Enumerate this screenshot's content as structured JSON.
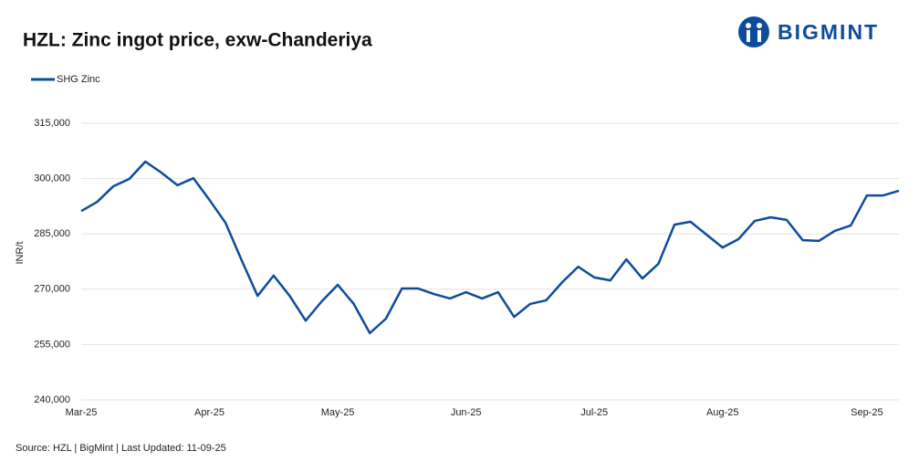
{
  "chart_data": {
    "type": "line",
    "title": "HZL: Zinc ingot price, exw-Chanderiya",
    "brand": "BIGMINT",
    "source": "Source: HZL | BigMint | Last Updated: 11-09-25",
    "y_label": "INR/t",
    "categories": [
      "Mar-25",
      null,
      null,
      null,
      null,
      null,
      null,
      null,
      "Apr-25",
      null,
      null,
      null,
      null,
      null,
      null,
      null,
      "May-25",
      null,
      null,
      null,
      null,
      null,
      null,
      null,
      "Jun-25",
      null,
      null,
      null,
      null,
      null,
      null,
      null,
      "Jul-25",
      null,
      null,
      null,
      null,
      null,
      null,
      null,
      "Aug-25",
      null,
      null,
      null,
      null,
      null,
      null,
      null,
      null,
      "Sep-25",
      null,
      null
    ],
    "series": [
      {
        "name": "SHG Zinc",
        "color": "#0d4c9c",
        "values": [
          291200,
          293700,
          297900,
          299900,
          304600,
          301600,
          298200,
          300100,
          294200,
          288000,
          277900,
          268200,
          273700,
          268200,
          261500,
          266700,
          271200,
          266000,
          258100,
          262000,
          270200,
          270200,
          268700,
          267500,
          269200,
          267500,
          269200,
          262500,
          266000,
          267000,
          271900,
          276100,
          273200,
          272400,
          278100,
          272900,
          276900,
          287500,
          288300,
          284800,
          281300,
          283600,
          288500,
          289500,
          288800,
          283300,
          283100,
          285800,
          287300,
          295400,
          295400,
          296700
        ]
      }
    ],
    "ylim": [
      240000,
      315000
    ],
    "yticks": [
      {
        "value": 240000,
        "label": "240,000"
      },
      {
        "value": 255000,
        "label": "255,000"
      },
      {
        "value": 270000,
        "label": "270,000"
      },
      {
        "value": 285000,
        "label": "285,000"
      },
      {
        "value": 300000,
        "label": "300,000"
      },
      {
        "value": 315000,
        "label": "315,000"
      }
    ],
    "grid": true,
    "legend": "top-left"
  }
}
